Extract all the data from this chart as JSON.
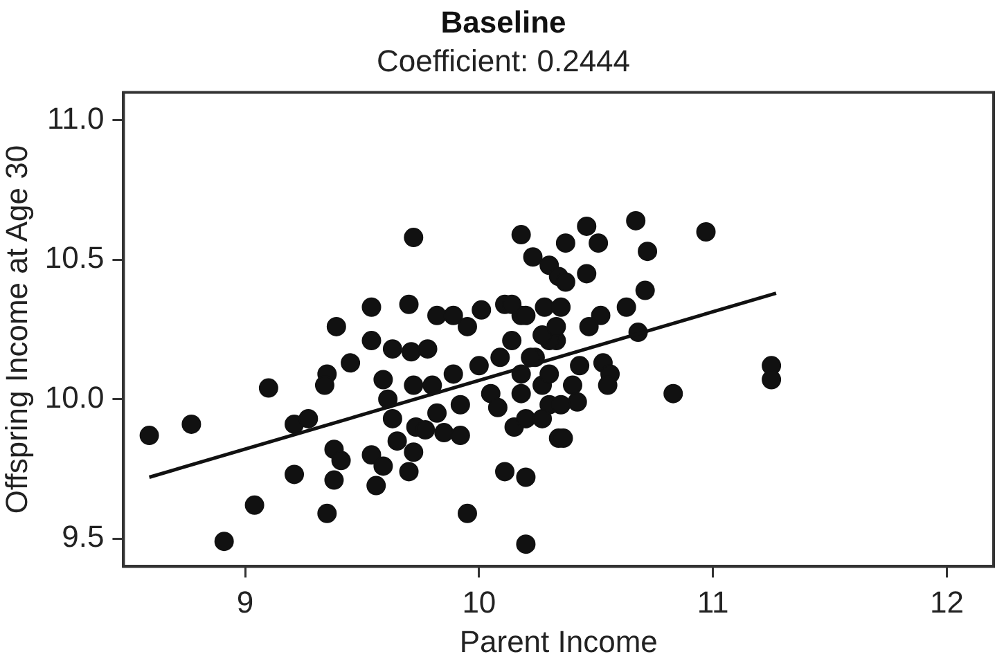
{
  "chart_data": {
    "type": "scatter",
    "title": "Baseline",
    "subtitle": "Coefficient: 0.2444",
    "xlabel": "Parent Income",
    "ylabel": "Offspring Income at Age 30",
    "xlim": [
      8.48,
      12.2
    ],
    "ylim": [
      9.4,
      11.1
    ],
    "xticks": [
      9,
      10,
      11,
      12
    ],
    "yticks": [
      {
        "value": 9.5,
        "label": "9.5"
      },
      {
        "value": 10,
        "label": "10.0"
      },
      {
        "value": 10.5,
        "label": "10.5"
      },
      {
        "value": 11,
        "label": "11.0"
      }
    ],
    "grid": false,
    "legend": false,
    "marker": "circle",
    "series": [
      {
        "color": "#111111",
        "x": [
          8.59,
          8.77,
          8.91,
          9.1,
          9.04,
          9.21,
          9.21,
          9.27,
          9.35,
          9.38,
          9.41,
          9.38,
          9.35,
          9.34,
          9.39,
          9.45,
          9.54,
          9.54,
          9.54,
          9.56,
          9.59,
          9.59,
          9.61,
          9.63,
          9.65,
          9.7,
          9.72,
          9.63,
          9.71,
          9.78,
          9.7,
          9.72,
          9.72,
          9.73,
          9.77,
          9.8,
          9.82,
          9.82,
          9.89,
          9.95,
          9.85,
          9.92,
          9.95,
          9.89,
          9.92,
          10.0,
          10.01,
          10.05,
          10.08,
          10.11,
          10.18,
          10.11,
          10.2,
          10.2,
          10.15,
          10.2,
          10.23,
          10.3,
          10.18,
          10.14,
          10.09,
          10.18,
          10.18,
          10.24,
          10.27,
          10.28,
          10.3,
          10.34,
          10.34,
          10.33,
          10.37,
          10.46,
          10.51,
          10.46,
          10.37,
          10.67,
          10.72,
          10.97,
          10.71,
          10.63,
          10.68,
          10.52,
          10.47,
          10.35,
          10.14,
          10.2,
          10.3,
          10.22,
          10.43,
          10.53,
          10.56,
          10.55,
          10.4,
          10.42,
          10.35,
          10.27,
          10.36,
          10.83,
          11.25,
          11.25,
          10.3,
          10.27,
          10.33
        ],
        "values": [
          9.87,
          9.91,
          9.49,
          10.04,
          9.62,
          9.73,
          9.91,
          9.93,
          9.59,
          9.82,
          9.78,
          9.71,
          10.09,
          10.05,
          10.26,
          10.13,
          10.33,
          10.21,
          9.8,
          9.69,
          9.76,
          10.07,
          10.0,
          9.93,
          9.85,
          9.74,
          9.81,
          10.18,
          10.17,
          10.18,
          10.34,
          10.58,
          10.05,
          9.9,
          9.89,
          10.05,
          9.95,
          10.3,
          10.3,
          10.26,
          9.88,
          9.87,
          9.59,
          10.09,
          9.98,
          10.12,
          10.32,
          10.02,
          9.97,
          10.34,
          10.59,
          9.74,
          9.72,
          9.48,
          9.9,
          9.93,
          10.51,
          10.48,
          10.3,
          10.21,
          10.15,
          10.09,
          10.02,
          10.15,
          10.05,
          10.33,
          9.98,
          9.86,
          10.44,
          10.21,
          10.56,
          10.62,
          10.56,
          10.45,
          10.42,
          10.64,
          10.53,
          10.6,
          10.39,
          10.33,
          10.24,
          10.3,
          10.26,
          10.33,
          10.34,
          10.3,
          10.21,
          10.15,
          10.12,
          10.13,
          10.09,
          10.05,
          10.05,
          9.99,
          9.98,
          9.93,
          9.86,
          10.02,
          10.12,
          10.07,
          10.09,
          10.23,
          10.26
        ]
      },
      {
        "type": "line",
        "color": "#111111",
        "marker": "none",
        "line_style": "solid",
        "x": [
          8.59,
          11.27
        ],
        "values": [
          9.72,
          10.38
        ]
      }
    ]
  }
}
